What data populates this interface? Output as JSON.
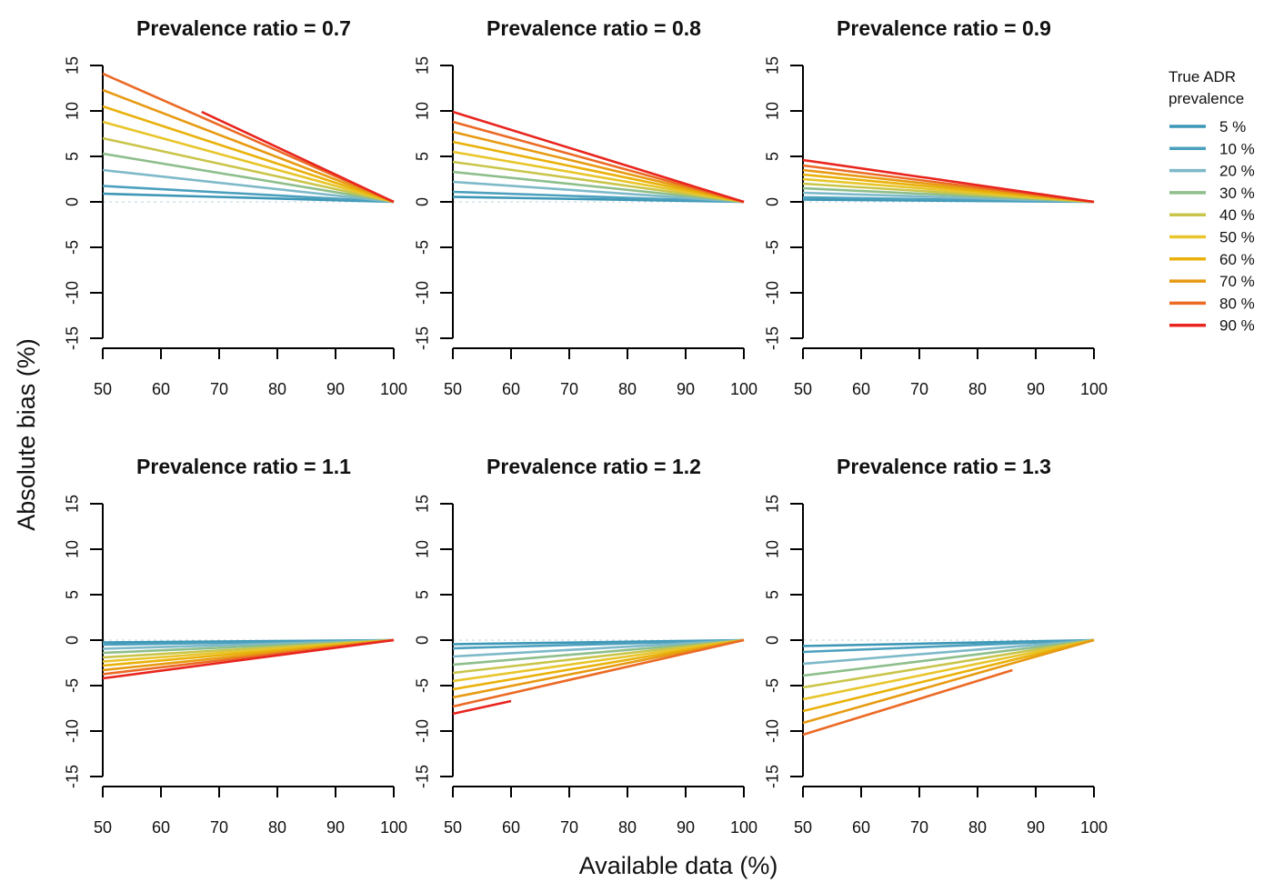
{
  "figure": {
    "ylabel": "Absolute bias (%)",
    "xlabel": "Available data (%)"
  },
  "legend": {
    "title_line1": "True ADR",
    "title_line2": "prevalence",
    "items": [
      {
        "label": "5 %",
        "color": "#3C97B6"
      },
      {
        "label": "10 %",
        "color": "#4BA0BE"
      },
      {
        "label": "20 %",
        "color": "#7DB9C9"
      },
      {
        "label": "30 %",
        "color": "#8DBE8B"
      },
      {
        "label": "40 %",
        "color": "#C9C54A"
      },
      {
        "label": "50 %",
        "color": "#E8C52A"
      },
      {
        "label": "60 %",
        "color": "#E9B10A"
      },
      {
        "label": "70 %",
        "color": "#E79A12"
      },
      {
        "label": "80 %",
        "color": "#EB6A25"
      },
      {
        "label": "90 %",
        "color": "#E8251E"
      }
    ]
  },
  "chart_data": [
    {
      "type": "line",
      "title": "Prevalence ratio =  0.7",
      "x_ticks": [
        "50",
        "60",
        "70",
        "80",
        "90",
        "100"
      ],
      "y_ticks": [
        "-15",
        "-10",
        "-5",
        "0",
        "5",
        "10",
        "15"
      ],
      "xlim": [
        50,
        100
      ],
      "ylim": [
        -15,
        15
      ],
      "reference_line_y": 0,
      "series": [
        {
          "name": "5 %",
          "x": [
            50,
            100
          ],
          "y": [
            0.9,
            0
          ]
        },
        {
          "name": "10 %",
          "x": [
            50,
            100
          ],
          "y": [
            1.75,
            0
          ]
        },
        {
          "name": "20 %",
          "x": [
            50,
            100
          ],
          "y": [
            3.5,
            0
          ]
        },
        {
          "name": "30 %",
          "x": [
            50,
            100
          ],
          "y": [
            5.3,
            0
          ]
        },
        {
          "name": "40 %",
          "x": [
            50,
            100
          ],
          "y": [
            7.0,
            0
          ]
        },
        {
          "name": "50 %",
          "x": [
            50,
            100
          ],
          "y": [
            8.8,
            0
          ]
        },
        {
          "name": "60 %",
          "x": [
            50,
            100
          ],
          "y": [
            10.5,
            0
          ]
        },
        {
          "name": "70 %",
          "x": [
            50,
            100
          ],
          "y": [
            12.3,
            0
          ]
        },
        {
          "name": "80 %",
          "x": [
            50,
            100
          ],
          "y": [
            14.1,
            0
          ]
        },
        {
          "name": "90 %",
          "x": [
            67,
            100
          ],
          "y": [
            9.9,
            0
          ]
        }
      ]
    },
    {
      "type": "line",
      "title": "Prevalence ratio =  0.8",
      "x_ticks": [
        "50",
        "60",
        "70",
        "80",
        "90",
        "100"
      ],
      "y_ticks": [
        "-15",
        "-10",
        "-5",
        "0",
        "5",
        "10",
        "15"
      ],
      "xlim": [
        50,
        100
      ],
      "ylim": [
        -15,
        15
      ],
      "reference_line_y": 0,
      "series": [
        {
          "name": "5 %",
          "x": [
            50,
            100
          ],
          "y": [
            0.55,
            0
          ]
        },
        {
          "name": "10 %",
          "x": [
            50,
            100
          ],
          "y": [
            1.1,
            0
          ]
        },
        {
          "name": "20 %",
          "x": [
            50,
            100
          ],
          "y": [
            2.2,
            0
          ]
        },
        {
          "name": "30 %",
          "x": [
            50,
            100
          ],
          "y": [
            3.3,
            0
          ]
        },
        {
          "name": "40 %",
          "x": [
            50,
            100
          ],
          "y": [
            4.4,
            0
          ]
        },
        {
          "name": "50 %",
          "x": [
            50,
            100
          ],
          "y": [
            5.5,
            0
          ]
        },
        {
          "name": "60 %",
          "x": [
            50,
            100
          ],
          "y": [
            6.6,
            0
          ]
        },
        {
          "name": "70 %",
          "x": [
            50,
            100
          ],
          "y": [
            7.7,
            0
          ]
        },
        {
          "name": "80 %",
          "x": [
            50,
            100
          ],
          "y": [
            8.8,
            0
          ]
        },
        {
          "name": "90 %",
          "x": [
            50,
            100
          ],
          "y": [
            9.9,
            0
          ]
        }
      ]
    },
    {
      "type": "line",
      "title": "Prevalence ratio =  0.9",
      "x_ticks": [
        "50",
        "60",
        "70",
        "80",
        "90",
        "100"
      ],
      "y_ticks": [
        "-15",
        "-10",
        "-5",
        "0",
        "5",
        "10",
        "15"
      ],
      "xlim": [
        50,
        100
      ],
      "ylim": [
        -15,
        15
      ],
      "reference_line_y": 0,
      "series": [
        {
          "name": "5 %",
          "x": [
            50,
            100
          ],
          "y": [
            0.25,
            0
          ]
        },
        {
          "name": "10 %",
          "x": [
            50,
            100
          ],
          "y": [
            0.5,
            0
          ]
        },
        {
          "name": "20 %",
          "x": [
            50,
            100
          ],
          "y": [
            1.0,
            0
          ]
        },
        {
          "name": "30 %",
          "x": [
            50,
            100
          ],
          "y": [
            1.5,
            0
          ]
        },
        {
          "name": "40 %",
          "x": [
            50,
            100
          ],
          "y": [
            2.0,
            0
          ]
        },
        {
          "name": "50 %",
          "x": [
            50,
            100
          ],
          "y": [
            2.5,
            0
          ]
        },
        {
          "name": "60 %",
          "x": [
            50,
            100
          ],
          "y": [
            3.0,
            0
          ]
        },
        {
          "name": "70 %",
          "x": [
            50,
            100
          ],
          "y": [
            3.5,
            0
          ]
        },
        {
          "name": "80 %",
          "x": [
            50,
            100
          ],
          "y": [
            4.0,
            0
          ]
        },
        {
          "name": "90 %",
          "x": [
            50,
            100
          ],
          "y": [
            4.6,
            0
          ]
        }
      ]
    },
    {
      "type": "line",
      "title": "Prevalence ratio =  1.1",
      "x_ticks": [
        "50",
        "60",
        "70",
        "80",
        "90",
        "100"
      ],
      "y_ticks": [
        "-15",
        "-10",
        "-5",
        "0",
        "5",
        "10",
        "15"
      ],
      "xlim": [
        50,
        100
      ],
      "ylim": [
        -15,
        15
      ],
      "reference_line_y": 0,
      "series": [
        {
          "name": "5 %",
          "x": [
            50,
            100
          ],
          "y": [
            -0.25,
            0
          ]
        },
        {
          "name": "10 %",
          "x": [
            50,
            100
          ],
          "y": [
            -0.5,
            0
          ]
        },
        {
          "name": "20 %",
          "x": [
            50,
            100
          ],
          "y": [
            -0.95,
            0
          ]
        },
        {
          "name": "30 %",
          "x": [
            50,
            100
          ],
          "y": [
            -1.4,
            0
          ]
        },
        {
          "name": "40 %",
          "x": [
            50,
            100
          ],
          "y": [
            -1.9,
            0
          ]
        },
        {
          "name": "50 %",
          "x": [
            50,
            100
          ],
          "y": [
            -2.35,
            0
          ]
        },
        {
          "name": "60 %",
          "x": [
            50,
            100
          ],
          "y": [
            -2.8,
            0
          ]
        },
        {
          "name": "70 %",
          "x": [
            50,
            100
          ],
          "y": [
            -3.3,
            0
          ]
        },
        {
          "name": "80 %",
          "x": [
            50,
            100
          ],
          "y": [
            -3.75,
            0
          ]
        },
        {
          "name": "90 %",
          "x": [
            50,
            100
          ],
          "y": [
            -4.2,
            0
          ]
        }
      ]
    },
    {
      "type": "line",
      "title": "Prevalence ratio =  1.2",
      "x_ticks": [
        "50",
        "60",
        "70",
        "80",
        "90",
        "100"
      ],
      "y_ticks": [
        "-15",
        "-10",
        "-5",
        "0",
        "5",
        "10",
        "15"
      ],
      "xlim": [
        50,
        100
      ],
      "ylim": [
        -15,
        15
      ],
      "reference_line_y": 0,
      "series": [
        {
          "name": "5 %",
          "x": [
            50,
            100
          ],
          "y": [
            -0.45,
            0
          ]
        },
        {
          "name": "10 %",
          "x": [
            50,
            100
          ],
          "y": [
            -0.9,
            0
          ]
        },
        {
          "name": "20 %",
          "x": [
            50,
            100
          ],
          "y": [
            -1.8,
            0
          ]
        },
        {
          "name": "30 %",
          "x": [
            50,
            100
          ],
          "y": [
            -2.7,
            0
          ]
        },
        {
          "name": "40 %",
          "x": [
            50,
            100
          ],
          "y": [
            -3.6,
            0
          ]
        },
        {
          "name": "50 %",
          "x": [
            50,
            100
          ],
          "y": [
            -4.5,
            0
          ]
        },
        {
          "name": "60 %",
          "x": [
            50,
            100
          ],
          "y": [
            -5.4,
            0
          ]
        },
        {
          "name": "70 %",
          "x": [
            50,
            100
          ],
          "y": [
            -6.3,
            0
          ]
        },
        {
          "name": "80 %",
          "x": [
            50,
            100
          ],
          "y": [
            -7.3,
            0
          ]
        },
        {
          "name": "90 %",
          "x": [
            50,
            60
          ],
          "y": [
            -8.1,
            -6.7
          ]
        }
      ]
    },
    {
      "type": "line",
      "title": "Prevalence ratio =  1.3",
      "x_ticks": [
        "50",
        "60",
        "70",
        "80",
        "90",
        "100"
      ],
      "y_ticks": [
        "-15",
        "-10",
        "-5",
        "0",
        "5",
        "10",
        "15"
      ],
      "xlim": [
        50,
        100
      ],
      "ylim": [
        -15,
        15
      ],
      "reference_line_y": 0,
      "series": [
        {
          "name": "5 %",
          "x": [
            50,
            100
          ],
          "y": [
            -0.65,
            0
          ]
        },
        {
          "name": "10 %",
          "x": [
            50,
            100
          ],
          "y": [
            -1.3,
            0
          ]
        },
        {
          "name": "20 %",
          "x": [
            50,
            100
          ],
          "y": [
            -2.6,
            0
          ]
        },
        {
          "name": "30 %",
          "x": [
            50,
            100
          ],
          "y": [
            -3.9,
            0
          ]
        },
        {
          "name": "40 %",
          "x": [
            50,
            100
          ],
          "y": [
            -5.2,
            0
          ]
        },
        {
          "name": "50 %",
          "x": [
            50,
            100
          ],
          "y": [
            -6.5,
            0
          ]
        },
        {
          "name": "60 %",
          "x": [
            50,
            100
          ],
          "y": [
            -7.8,
            0
          ]
        },
        {
          "name": "70 %",
          "x": [
            50,
            100
          ],
          "y": [
            -9.1,
            0
          ]
        },
        {
          "name": "80 %",
          "x": [
            50,
            86
          ],
          "y": [
            -10.4,
            -3.3
          ]
        }
      ]
    }
  ]
}
